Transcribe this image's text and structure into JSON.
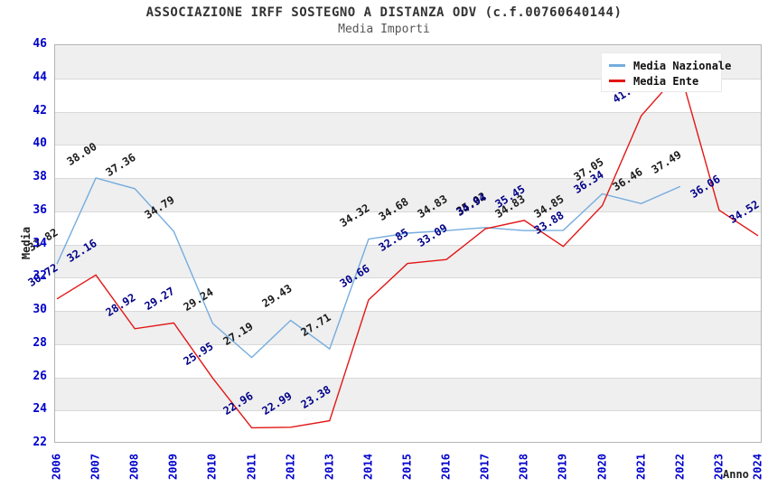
{
  "title": "ASSOCIAZIONE IRFF SOSTEGNO A DISTANZA ODV (c.f.00760640144)",
  "subtitle": "Media Importi",
  "legend": {
    "items": [
      {
        "label": "Media Nazionale",
        "color": "#74acde"
      },
      {
        "label": "Media Ente",
        "color": "#e31616"
      }
    ]
  },
  "axes": {
    "y_label": "Media",
    "x_label": "Anno",
    "tick_color": "#0000cc"
  },
  "chart_data": {
    "type": "line",
    "title": "ASSOCIAZIONE IRFF SOSTEGNO A DISTANZA ODV (c.f.00760640144)",
    "subtitle": "Media Importi",
    "xlabel": "Anno",
    "ylabel": "Media",
    "x": [
      "2006",
      "2007",
      "2008",
      "2009",
      "2010",
      "2011",
      "2012",
      "2013",
      "2014",
      "2015",
      "2016",
      "2017",
      "2018",
      "2019",
      "2020",
      "2021",
      "2022",
      "2023",
      "2024"
    ],
    "ylim": [
      22,
      46
    ],
    "y_ticks": [
      22,
      24,
      26,
      28,
      30,
      32,
      34,
      36,
      38,
      40,
      42,
      44,
      46
    ],
    "grid": "horizontal-stripes",
    "legend_position": "top-right",
    "series": [
      {
        "name": "Media Nazionale",
        "color": "#74acde",
        "label_color": "#1a1a1a",
        "values": [
          32.82,
          38.0,
          37.36,
          34.79,
          29.24,
          27.19,
          29.43,
          27.71,
          34.32,
          34.68,
          34.83,
          35.02,
          34.83,
          34.85,
          37.05,
          36.46,
          37.49,
          null,
          null
        ],
        "labels": [
          "32.82",
          "38.00",
          "37.36",
          "34.79",
          "29.24",
          "27.19",
          "29.43",
          "27.71",
          "34.32",
          "34.68",
          "34.83",
          "35.02",
          "34.83",
          "34.85",
          "37.05",
          "36.46",
          "37.49",
          null,
          null
        ]
      },
      {
        "name": "Media Ente",
        "color": "#e31616",
        "label_color": "#000088",
        "values": [
          30.72,
          32.16,
          28.92,
          29.27,
          25.95,
          22.96,
          22.99,
          23.38,
          30.66,
          32.85,
          33.09,
          34.94,
          35.45,
          33.88,
          36.34,
          41.75,
          44.4,
          36.06,
          34.52
        ],
        "labels": [
          "30.72",
          "32.16",
          "28.92",
          "29.27",
          "25.95",
          "22.96",
          "22.99",
          "23.38",
          "30.66",
          "32.85",
          "33.09",
          "34.94",
          "35.45",
          "33.88",
          "36.34",
          "41.75",
          null,
          "36.06",
          "34.52"
        ],
        "note": "2022 value estimated from line position; its label is hidden behind the legend"
      }
    ]
  }
}
